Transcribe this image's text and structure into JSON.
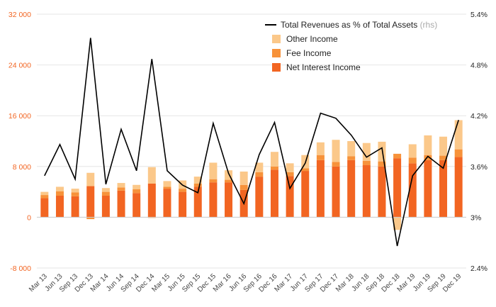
{
  "chart_data": {
    "type": "bar",
    "stacked": true,
    "categories": [
      "Mar 13",
      "Jun 13",
      "Sep 13",
      "Dec 13",
      "Mar 14",
      "Jun 14",
      "Sep 14",
      "Dec 14",
      "Mar 15",
      "Jun 15",
      "Sep 15",
      "Dec 15",
      "Mar 16",
      "Jun 16",
      "Sep 16",
      "Dec 16",
      "Mar 17",
      "Jun 17",
      "Sep 17",
      "Dec 17",
      "Mar 18",
      "Jun 18",
      "Sep 18",
      "Dec 18",
      "Mar 19",
      "Jun 19",
      "Sep 19",
      "Dec 19"
    ],
    "x_tick_labels": [
      "Mar 13",
      "Jun 13",
      "Sep 13",
      "Dec 13",
      "Mar 14",
      "Jun 14",
      "Sep 14",
      "Dec 14",
      "Mar 15",
      "Jun 15",
      "Sep 15",
      "Dec 15",
      "Mar 16",
      "Jun 16",
      "Sep 16",
      "Dec 16",
      "Mar 17",
      "Jun 17",
      "Sep 17",
      "Dec 17",
      "Mar 18",
      "Jun 18",
      "Sep 18",
      "Dec 18",
      "Mar 19",
      "Jun 19",
      "Sep 19",
      "Dec 19"
    ],
    "series": [
      {
        "name": "Net Interest Income",
        "color": "#f26522",
        "values": [
          3000,
          3400,
          3300,
          4900,
          3400,
          4200,
          3800,
          5300,
          4500,
          4000,
          4800,
          5500,
          5500,
          4300,
          6400,
          7500,
          6500,
          7300,
          9000,
          8000,
          9000,
          8200,
          8000,
          9300,
          8500,
          9000,
          9000,
          9500
        ]
      },
      {
        "name": "Fee Income",
        "color": "#f7923a",
        "values": [
          500,
          700,
          600,
          -300,
          600,
          500,
          600,
          -100,
          300,
          500,
          500,
          500,
          400,
          800,
          700,
          500,
          600,
          400,
          800,
          700,
          600,
          700,
          800,
          700,
          900,
          800,
          700,
          1200
        ]
      },
      {
        "name": "Other Income",
        "color": "#fbc88a",
        "values": [
          500,
          700,
          600,
          2100,
          600,
          700,
          700,
          2600,
          900,
          1300,
          1100,
          2600,
          1500,
          2100,
          1500,
          2300,
          1400,
          2100,
          2000,
          3500,
          2400,
          2800,
          3100,
          -2000,
          2100,
          3100,
          3000,
          4600
        ]
      }
    ],
    "line_series": {
      "name": "Total Revenues as % of Total Assets",
      "name_suffix": "(rhs)",
      "color": "#000000",
      "values": [
        3.49,
        3.86,
        3.45,
        5.12,
        3.39,
        4.04,
        3.55,
        4.87,
        3.55,
        3.38,
        3.29,
        4.11,
        3.52,
        3.16,
        3.74,
        4.12,
        3.34,
        3.64,
        4.23,
        4.17,
        3.97,
        3.71,
        3.82,
        2.66,
        3.49,
        3.72,
        3.58,
        4.15
      ]
    },
    "left_axis": {
      "ylim": [
        -8000,
        32000
      ],
      "ticks": [
        32000,
        24000,
        16000,
        8000,
        0,
        -8000
      ],
      "tick_labels": [
        "32 000",
        "24 000",
        "16 000",
        "8 000",
        "0",
        "-8 000"
      ]
    },
    "right_axis": {
      "ylim": [
        2.4,
        5.4
      ],
      "ticks": [
        5.4,
        4.8,
        4.2,
        3.6,
        3.0,
        2.4
      ],
      "tick_labels": [
        "5.4%",
        "4.8%",
        "4.2%",
        "3.6%",
        "3%",
        "2.4%"
      ]
    },
    "title": "",
    "xlabel": "",
    "ylabel": "",
    "grid": true,
    "legend_position": "top-right",
    "legend_order": [
      "line",
      "Other Income",
      "Fee Income",
      "Net Interest Income"
    ]
  }
}
